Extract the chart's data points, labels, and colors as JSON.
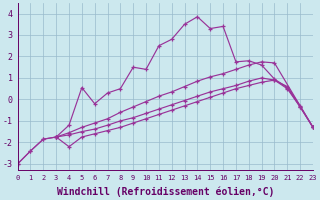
{
  "xlabel": "Windchill (Refroidissement éolien,°C)",
  "background_color": "#cce8ee",
  "line_color": "#993399",
  "grid_color": "#99bbcc",
  "xlim": [
    0,
    23
  ],
  "ylim": [
    -3.3,
    4.5
  ],
  "xticks": [
    0,
    1,
    2,
    3,
    4,
    5,
    6,
    7,
    8,
    9,
    10,
    11,
    12,
    13,
    14,
    15,
    16,
    17,
    18,
    19,
    20,
    21,
    22,
    23
  ],
  "yticks": [
    -3,
    -2,
    -1,
    0,
    1,
    2,
    3,
    4
  ],
  "line1_x": [
    0,
    1,
    2,
    3,
    4,
    5,
    6,
    7,
    8,
    9,
    10,
    11,
    12,
    13,
    14,
    15,
    16,
    17,
    18,
    19,
    20,
    21,
    22,
    23
  ],
  "line1_y": [
    -3.0,
    -2.4,
    -1.85,
    -1.75,
    -2.2,
    -1.75,
    -1.6,
    -1.45,
    -1.3,
    -1.1,
    -0.9,
    -0.7,
    -0.5,
    -0.3,
    -0.1,
    0.1,
    0.3,
    0.5,
    0.65,
    0.8,
    0.9,
    0.6,
    -0.3,
    -1.3
  ],
  "line2_x": [
    3,
    4,
    5,
    6,
    7,
    8,
    9,
    10,
    11,
    12,
    13,
    14,
    15,
    16,
    17,
    18,
    19,
    20,
    21,
    22,
    23
  ],
  "line2_y": [
    -1.75,
    -1.65,
    -1.5,
    -1.38,
    -1.2,
    -1.0,
    -0.85,
    -0.65,
    -0.45,
    -0.25,
    -0.05,
    0.15,
    0.35,
    0.5,
    0.65,
    0.85,
    1.0,
    0.9,
    0.5,
    -0.35,
    -1.3
  ],
  "line3_x": [
    0,
    1,
    2,
    3,
    4,
    5,
    6,
    7,
    8,
    9,
    10,
    11,
    12,
    13,
    14,
    15,
    16,
    17,
    18,
    19,
    20,
    21,
    22,
    23
  ],
  "line3_y": [
    -3.0,
    -2.4,
    -1.85,
    -1.75,
    -1.2,
    0.55,
    -0.2,
    0.3,
    0.5,
    1.5,
    1.4,
    2.5,
    2.8,
    3.5,
    3.85,
    3.3,
    3.4,
    1.75,
    1.8,
    1.6,
    0.95,
    0.55,
    -0.35,
    -1.3
  ],
  "line4_x": [
    3,
    4,
    5,
    6,
    7,
    8,
    9,
    10,
    11,
    12,
    13,
    14,
    15,
    16,
    17,
    18,
    19,
    20,
    23
  ],
  "line4_y": [
    -1.75,
    -1.55,
    -1.3,
    -1.1,
    -0.9,
    -0.6,
    -0.35,
    -0.1,
    0.15,
    0.35,
    0.6,
    0.85,
    1.05,
    1.2,
    1.4,
    1.6,
    1.75,
    1.7,
    -1.3
  ],
  "tick_color": "#660066",
  "font_size_tick_x": 5,
  "font_size_tick_y": 6,
  "font_size_label": 7
}
